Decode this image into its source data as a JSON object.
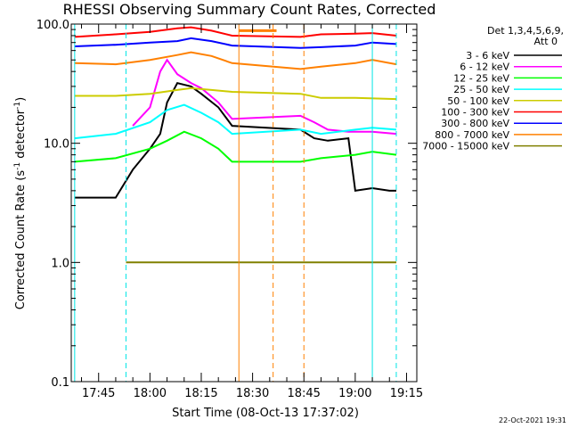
{
  "chart_data": {
    "type": "line",
    "title": "RHESSI Observing Summary Count Rates, Corrected",
    "xlabel": "Start Time (08-Oct-13 17:37:02)",
    "ylabel": "Corrected Count Rate (s",
    "ylabel_sup": "-1",
    "ylabel_tail": " detector",
    "ylabel_close": ")",
    "y_scale": "log",
    "ylim": [
      0.1,
      100.0
    ],
    "xlim": [
      "17:37",
      "19:18"
    ],
    "y_ticks": [
      {
        "value": 0.1,
        "label": "0.1"
      },
      {
        "value": 1.0,
        "label": "1.0"
      },
      {
        "value": 10.0,
        "label": "10.0"
      },
      {
        "value": 100.0,
        "label": "100.0"
      }
    ],
    "x_ticks": [
      {
        "value": "17:45",
        "label": "17:45"
      },
      {
        "value": "18:00",
        "label": "18:00"
      },
      {
        "value": "18:15",
        "label": "18:15"
      },
      {
        "value": "18:30",
        "label": "18:30"
      },
      {
        "value": "18:45",
        "label": "18:45"
      },
      {
        "value": "19:00",
        "label": "19:00"
      },
      {
        "value": "19:15",
        "label": "19:15"
      }
    ],
    "legend_header": [
      "Det 1,3,4,5,6,9,",
      "Att 0"
    ],
    "legend_placement": "right",
    "series": [
      {
        "name": "3 - 6 keV",
        "color": "#000000",
        "x": [
          "17:38",
          "17:50",
          "17:55",
          "18:00",
          "18:03",
          "18:05",
          "18:08",
          "18:12",
          "18:15",
          "18:20",
          "18:24",
          "18:44",
          "18:48",
          "18:52",
          "18:58",
          "19:00",
          "19:05",
          "19:10",
          "19:12"
        ],
        "y": [
          3.5,
          3.5,
          6.0,
          9.0,
          12.0,
          22.0,
          32.0,
          30.0,
          26.0,
          20.0,
          14.0,
          13.0,
          11.0,
          10.5,
          11.0,
          4.0,
          4.2,
          4.0,
          4.0
        ]
      },
      {
        "name": "6 - 12 keV",
        "color": "#ff00ff",
        "x": [
          "17:55",
          "18:00",
          "18:03",
          "18:05",
          "18:08",
          "18:12",
          "18:15",
          "18:20",
          "18:24",
          "18:44",
          "18:48",
          "18:52",
          "18:58",
          "19:05",
          "19:12"
        ],
        "y": [
          14.0,
          20.0,
          40.0,
          50.0,
          38.0,
          32.0,
          29.0,
          22.0,
          16.0,
          17.0,
          15.0,
          13.0,
          12.5,
          12.5,
          12.0
        ]
      },
      {
        "name": "12 - 25 keV",
        "color": "#00ff00",
        "x": [
          "17:38",
          "17:50",
          "18:00",
          "18:05",
          "18:10",
          "18:15",
          "18:20",
          "18:24",
          "18:44",
          "18:50",
          "19:00",
          "19:05",
          "19:12"
        ],
        "y": [
          7.0,
          7.5,
          9.0,
          10.5,
          12.5,
          11.0,
          9.0,
          7.0,
          7.0,
          7.5,
          8.0,
          8.5,
          8.0
        ]
      },
      {
        "name": "25 - 50 keV",
        "color": "#00ffff",
        "x": [
          "17:38",
          "17:50",
          "18:00",
          "18:05",
          "18:10",
          "18:15",
          "18:20",
          "18:24",
          "18:44",
          "18:50",
          "19:00",
          "19:05",
          "19:12"
        ],
        "y": [
          11.0,
          12.0,
          15.0,
          19.0,
          21.0,
          18.0,
          15.0,
          12.0,
          13.0,
          12.0,
          13.0,
          13.5,
          13.0
        ]
      },
      {
        "name": "50 - 100 keV",
        "color": "#cccc00",
        "x": [
          "17:38",
          "17:50",
          "18:00",
          "18:08",
          "18:12",
          "18:18",
          "18:24",
          "18:44",
          "18:50",
          "19:00",
          "19:12"
        ],
        "y": [
          25.0,
          25.0,
          26.0,
          28.0,
          29.0,
          28.0,
          27.0,
          26.0,
          24.0,
          24.0,
          23.5
        ]
      },
      {
        "name": "100 - 300 keV",
        "color": "#ff0000",
        "x": [
          "17:38",
          "17:50",
          "18:00",
          "18:08",
          "18:12",
          "18:18",
          "18:24",
          "18:44",
          "18:50",
          "19:00",
          "19:05",
          "19:12"
        ],
        "y": [
          78.0,
          82.0,
          86.0,
          92.0,
          94.0,
          88.0,
          80.0,
          78.0,
          82.0,
          83.0,
          84.0,
          80.0
        ]
      },
      {
        "name": "300 - 800 keV",
        "color": "#0000ff",
        "x": [
          "17:38",
          "17:50",
          "18:00",
          "18:08",
          "18:12",
          "18:18",
          "18:24",
          "18:44",
          "18:50",
          "19:00",
          "19:05",
          "19:12"
        ],
        "y": [
          65.0,
          67.0,
          70.0,
          72.0,
          76.0,
          72.0,
          66.0,
          63.0,
          64.0,
          66.0,
          70.0,
          68.0
        ]
      },
      {
        "name": "800 - 7000 keV",
        "color": "#ff8000",
        "x": [
          "17:38",
          "17:50",
          "18:00",
          "18:08",
          "18:12",
          "18:18",
          "18:24",
          "18:44",
          "18:50",
          "19:00",
          "19:05",
          "19:12"
        ],
        "y": [
          47.0,
          46.0,
          50.0,
          55.0,
          58.0,
          54.0,
          47.0,
          42.0,
          44.0,
          47.0,
          50.0,
          46.0
        ]
      },
      {
        "name": "7000 - 15000 keV",
        "color": "#808000",
        "x": [
          "17:53",
          "18:00",
          "18:05",
          "18:10",
          "18:15",
          "18:20",
          "18:24",
          "18:48",
          "18:55",
          "19:00",
          "19:05",
          "19:12"
        ],
        "y": [
          1.0,
          1.0,
          1.0,
          1.0,
          1.0,
          1.0,
          1.0,
          1.0,
          1.0,
          1.0,
          1.0,
          1.0
        ]
      }
    ],
    "markers": {
      "attenuator_bar": {
        "color": "#ff8000",
        "x": [
          "18:26",
          "18:37"
        ],
        "y": 88.0
      },
      "cyan_solid": [
        "17:38",
        "19:05"
      ],
      "cyan_dashed": [
        "17:53",
        "19:12"
      ],
      "orange_solid": [
        "18:26"
      ],
      "orange_dashed": [
        "18:36",
        "18:45"
      ]
    }
  },
  "timestamp": "22-Oct-2021 19:31"
}
